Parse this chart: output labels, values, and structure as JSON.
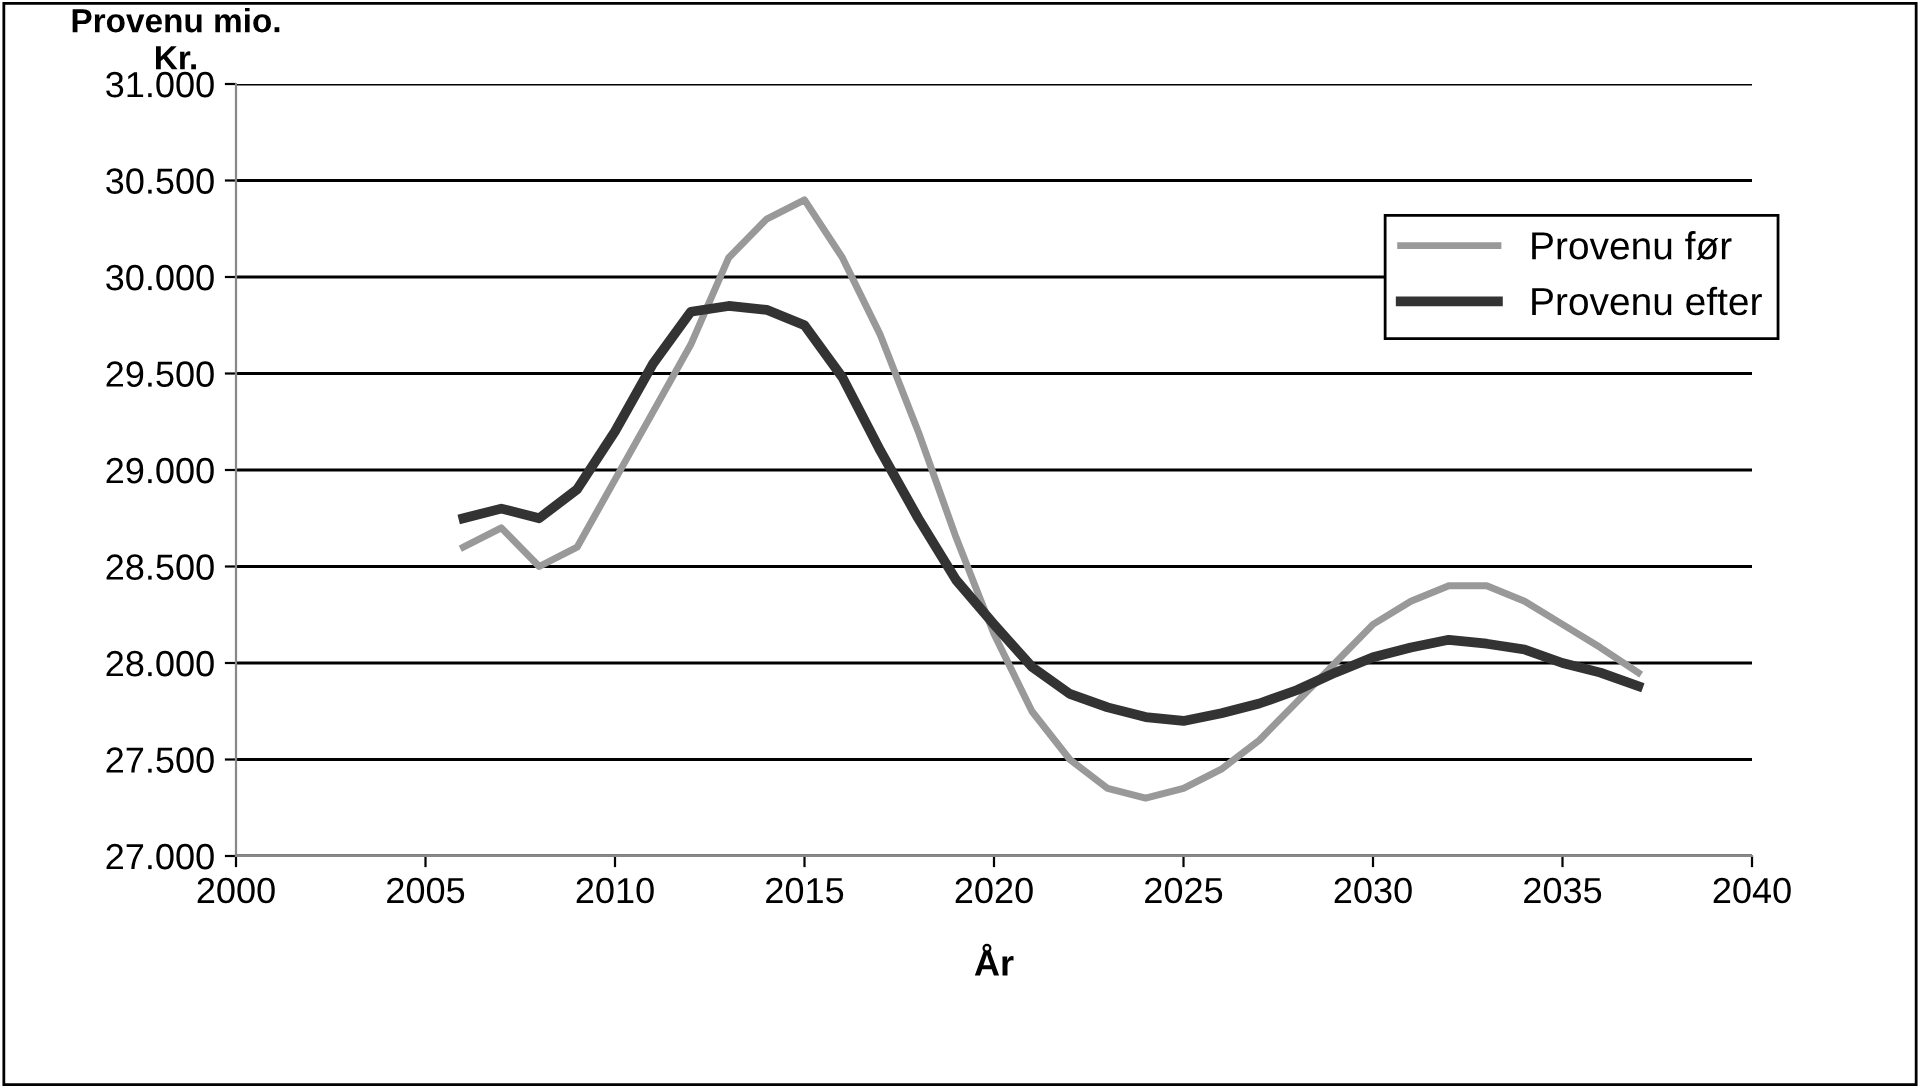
{
  "chart_data": {
    "type": "line",
    "ylabel": "Provenu mio.\nKr.",
    "xlabel": "År",
    "x": [
      2006,
      2007,
      2008,
      2009,
      2010,
      2011,
      2012,
      2013,
      2014,
      2015,
      2016,
      2017,
      2018,
      2019,
      2020,
      2021,
      2022,
      2023,
      2024,
      2025,
      2026,
      2027,
      2028,
      2029,
      2030,
      2031,
      2032,
      2033,
      2034,
      2035,
      2036,
      2037
    ],
    "series": [
      {
        "name": "Provenu før",
        "color": "#999999",
        "values": [
          28600,
          28700,
          28500,
          28600,
          28950,
          29300,
          29650,
          30100,
          30300,
          30400,
          30100,
          29700,
          29200,
          28650,
          28150,
          27750,
          27500,
          27350,
          27300,
          27350,
          27450,
          27600,
          27800,
          28000,
          28200,
          28320,
          28400,
          28400,
          28320,
          28200,
          28080,
          27950
        ]
      },
      {
        "name": "Provenu efter",
        "color": "#333333",
        "values": [
          28750,
          28800,
          28750,
          28900,
          29200,
          29550,
          29820,
          29850,
          29830,
          29750,
          29480,
          29100,
          28750,
          28430,
          28200,
          27980,
          27840,
          27770,
          27720,
          27700,
          27740,
          27790,
          27860,
          27950,
          28030,
          28080,
          28120,
          28100,
          28070,
          28000,
          27950,
          27880
        ]
      }
    ],
    "xlim": [
      2000,
      2040
    ],
    "xticks": [
      2000,
      2005,
      2010,
      2015,
      2020,
      2025,
      2030,
      2035,
      2040
    ],
    "ylim": [
      27000,
      31000
    ],
    "yticks": [
      {
        "value": 27000,
        "label": "27.000"
      },
      {
        "value": 27500,
        "label": "27.500"
      },
      {
        "value": 28000,
        "label": "28.000"
      },
      {
        "value": 28500,
        "label": "28.500"
      },
      {
        "value": 29000,
        "label": "29.000"
      },
      {
        "value": 29500,
        "label": "29.500"
      },
      {
        "value": 30000,
        "label": "30.000"
      },
      {
        "value": 30500,
        "label": "30.500"
      },
      {
        "value": 31000,
        "label": "31.000"
      }
    ],
    "grid": "y",
    "legend": "right",
    "line_style": "solid",
    "marker": "none"
  }
}
